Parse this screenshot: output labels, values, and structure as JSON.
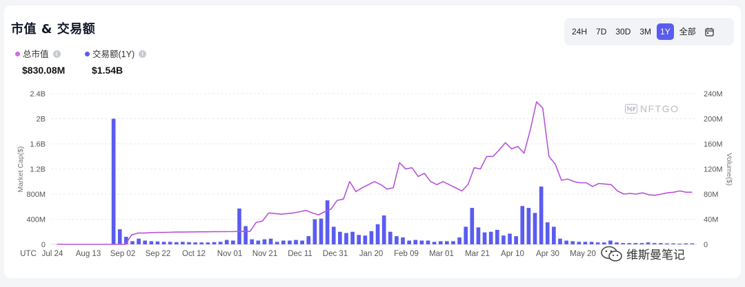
{
  "header": {
    "title": "市值 & 交易额",
    "ranges": [
      "24H",
      "7D",
      "30D",
      "3M",
      "1Y",
      "全部"
    ],
    "active_range": "1Y"
  },
  "legend": {
    "market_cap_label": "总市值",
    "market_cap_value": "$830.08M",
    "volume_label": "交易额(1Y)",
    "volume_value": "$1.54B"
  },
  "watermark": {
    "brand": "NFTGO",
    "wechat": "维斯曼笔记"
  },
  "colors": {
    "line": "#b553d9",
    "bar": "#5a5cf0",
    "legend_line_dot": "#cf6ee6",
    "legend_bar_dot": "#5a5cf0",
    "active_range_bg": "#5a5cf0"
  },
  "chart_data": {
    "type": "bar+line",
    "ylabel_left": "Market Cap($)",
    "ylabel_right": "Volume($)",
    "ylim_left": [
      0,
      2400000000
    ],
    "ylim_right": [
      0,
      240000000
    ],
    "left_ticks": [
      "0",
      "400M",
      "800M",
      "1.2B",
      "1.6B",
      "2B",
      "2.4B"
    ],
    "right_ticks": [
      "0",
      "40M",
      "80M",
      "120M",
      "160M",
      "200M",
      "240M"
    ],
    "x_ticks": [
      "UTC",
      "Jul 24",
      "Aug 13",
      "Sep 02",
      "Sep 22",
      "Oct 12",
      "Nov 01",
      "Nov 21",
      "Dec 11",
      "Dec 31",
      "Jan 20",
      "Feb 09",
      "Mar 01",
      "Mar 21",
      "Apr 10",
      "Apr 30",
      "May 20"
    ],
    "grid": true,
    "series": [
      {
        "name": "总市值",
        "type": "line",
        "axis": "left",
        "values": [
          0,
          0,
          0,
          0,
          0,
          0,
          0,
          0,
          0,
          0,
          0,
          0,
          150000000,
          180000000,
          180000000,
          185000000,
          190000000,
          190000000,
          192000000,
          195000000,
          195000000,
          196000000,
          198000000,
          200000000,
          200000000,
          202000000,
          202000000,
          203000000,
          203000000,
          205000000,
          206000000,
          205000000,
          350000000,
          370000000,
          500000000,
          490000000,
          480000000,
          490000000,
          500000000,
          520000000,
          540000000,
          500000000,
          470000000,
          520000000,
          560000000,
          700000000,
          720000000,
          1000000000,
          840000000,
          900000000,
          950000000,
          1000000000,
          950000000,
          880000000,
          900000000,
          1300000000,
          1200000000,
          1220000000,
          1080000000,
          1130000000,
          1000000000,
          950000000,
          1000000000,
          950000000,
          900000000,
          850000000,
          950000000,
          1220000000,
          1200000000,
          1400000000,
          1400000000,
          1500000000,
          1620000000,
          1520000000,
          1560000000,
          1450000000,
          1820000000,
          2270000000,
          2170000000,
          1400000000,
          1280000000,
          1020000000,
          1040000000,
          1000000000,
          980000000,
          980000000,
          920000000,
          970000000,
          960000000,
          950000000,
          850000000,
          800000000,
          810000000,
          800000000,
          820000000,
          790000000,
          780000000,
          800000000,
          820000000,
          830000000,
          850000000,
          830000000,
          830000000
        ]
      },
      {
        "name": "交易额(1Y)",
        "type": "bar",
        "axis": "right",
        "values": [
          0,
          0,
          0,
          0,
          0,
          0,
          0,
          0,
          0,
          200000000,
          24000000,
          12000000,
          5000000,
          9000000,
          6000000,
          5000000,
          4500000,
          4000000,
          4000000,
          3500000,
          4000000,
          3500000,
          3000000,
          3000000,
          3000000,
          3500000,
          4000000,
          7000000,
          6000000,
          57000000,
          29000000,
          8000000,
          6000000,
          8000000,
          9000000,
          4000000,
          6000000,
          6000000,
          7000000,
          6000000,
          13000000,
          40000000,
          41000000,
          70000000,
          28000000,
          20000000,
          18000000,
          20000000,
          15000000,
          14000000,
          21000000,
          32000000,
          46000000,
          20000000,
          13000000,
          11000000,
          6000000,
          7000000,
          6000000,
          6000000,
          4000000,
          5000000,
          5000000,
          5000000,
          11000000,
          28000000,
          58000000,
          27000000,
          19000000,
          20000000,
          23000000,
          14000000,
          17000000,
          13000000,
          61000000,
          58000000,
          50000000,
          92000000,
          35000000,
          28000000,
          9000000,
          6000000,
          5000000,
          4000000,
          4000000,
          4000000,
          3000000,
          3000000,
          6000000,
          3000000,
          2000000,
          2000000,
          2000000,
          2000000,
          3000000,
          2000000,
          2000000,
          1500000,
          1500000,
          1000000,
          1500000,
          1500000
        ]
      }
    ]
  }
}
